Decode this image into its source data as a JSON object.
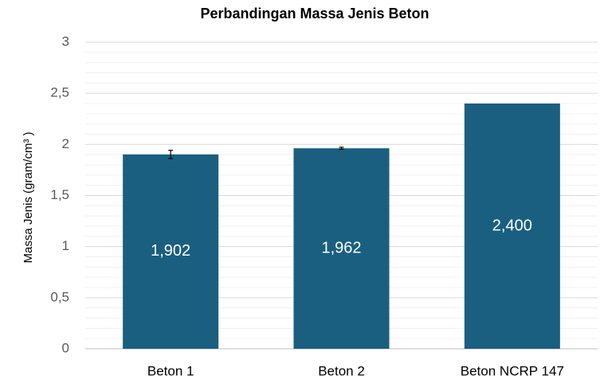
{
  "chart_data": {
    "type": "bar",
    "title": "Perbandingan Massa Jenis Beton",
    "y_label": "Massa Jenis (gram/cm³ )",
    "categories": [
      "Beton 1",
      "Beton  2",
      "Beton NCRP 147"
    ],
    "values": [
      1.902,
      1.962,
      2.4
    ],
    "value_labels": [
      "1,902",
      "1,962",
      "2,400"
    ],
    "errors": [
      0.04,
      0.01,
      null
    ],
    "color": "#1a5f80",
    "ylim": [
      0,
      3
    ],
    "yticks": [
      0,
      {
        "value": 0.5,
        "label": "0,5"
      },
      1,
      {
        "value": 1.5,
        "label": "1,5"
      },
      2,
      {
        "value": 2.5,
        "label": "2,5"
      },
      3
    ],
    "grid": true,
    "minor_divisions": 5
  }
}
